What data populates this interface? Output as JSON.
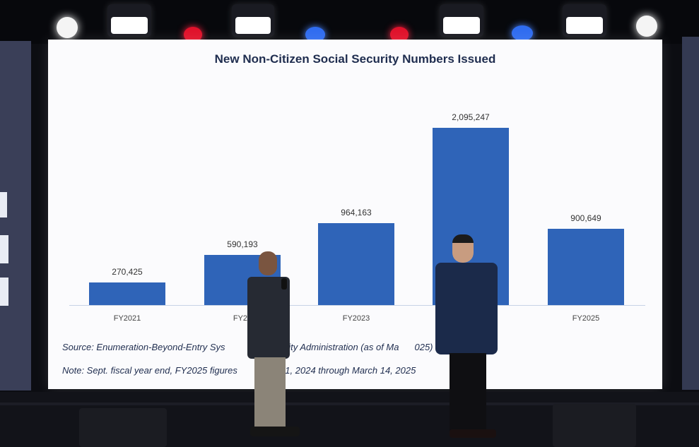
{
  "slide": {
    "title": "New Non-Citizen Social Security Numbers Issued",
    "source": "Source: Enumeration-Beyond-Entry Sys",
    "source_tail": "al Security Administration (as of Ma",
    "source_end": "025)",
    "note": "Note: Sept. fiscal year end, FY2025 figures",
    "note_tail": "Oct. 1, 2024 through March 14, 2025"
  },
  "chart_data": {
    "type": "bar",
    "title": "New Non-Citizen Social Security Numbers Issued",
    "categories": [
      "FY2021",
      "FY20",
      "FY2023",
      "",
      "FY2025"
    ],
    "values": [
      270425,
      590193,
      964163,
      2095247,
      900649
    ],
    "value_labels": [
      "270,425",
      "590,193",
      "964,163",
      "2,095,247",
      "900,649"
    ],
    "ylim": [
      0,
      2200000
    ],
    "grid": false,
    "bar_color": "#2f64b8"
  },
  "colors": {
    "screen": "#fbfbfd",
    "stage": "#0c0d12",
    "title_text": "#1f2d4f"
  },
  "icons": {
    "lights": [
      "white-spotlight",
      "floodlight",
      "red-spotlight",
      "floodlight",
      "blue-spotlight",
      "red-spotlight",
      "floodlight",
      "blue-spotlight",
      "floodlight",
      "white-spotlight"
    ]
  }
}
